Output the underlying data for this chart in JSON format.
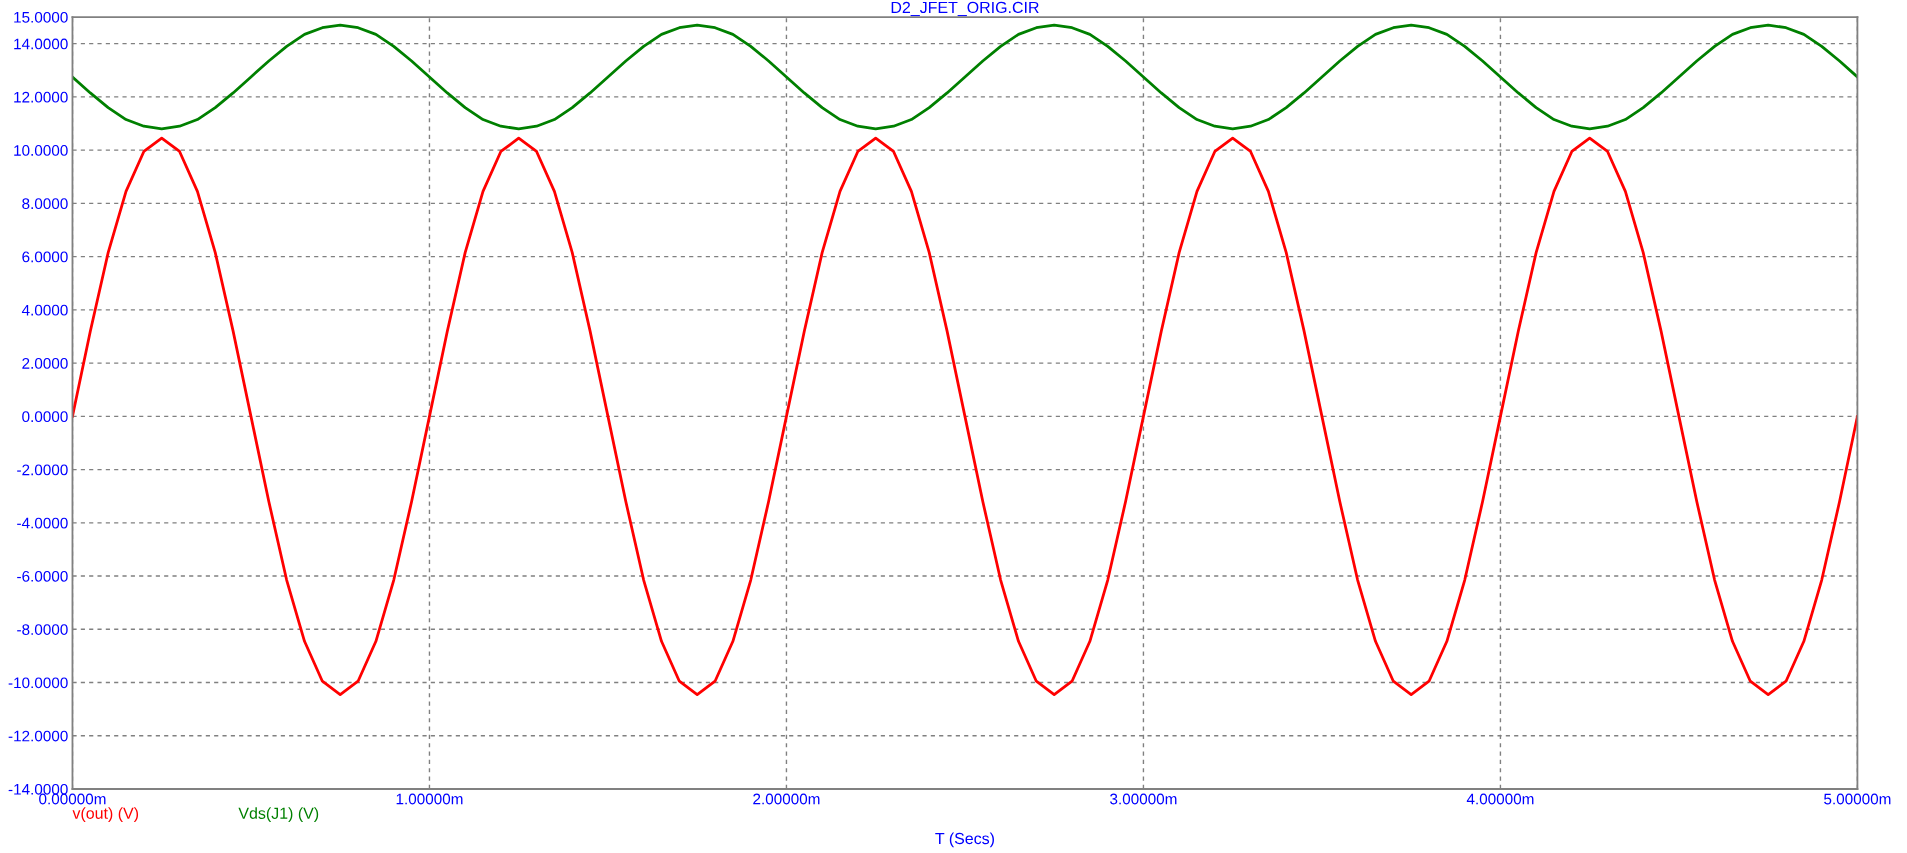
{
  "chart_data": {
    "type": "line",
    "title": "D2_JFET_ORIG.CIR",
    "xlabel": "T (Secs)",
    "x": [
      0,
      0.05,
      0.1,
      0.15,
      0.2,
      0.25,
      0.3,
      0.35,
      0.4,
      0.45,
      0.5,
      0.55,
      0.6,
      0.65,
      0.7,
      0.75,
      0.8,
      0.85,
      0.9,
      0.95,
      1,
      1.05,
      1.1,
      1.15,
      1.2,
      1.25,
      1.3,
      1.35,
      1.4,
      1.45,
      1.5,
      1.55,
      1.6,
      1.65,
      1.7,
      1.75,
      1.8,
      1.85,
      1.9,
      1.95,
      2,
      2.05,
      2.1,
      2.15,
      2.2,
      2.25,
      2.3,
      2.35,
      2.4,
      2.45,
      2.5,
      2.55,
      2.6,
      2.65,
      2.7,
      2.75,
      2.8,
      2.85,
      2.9,
      2.95,
      3,
      3.05,
      3.1,
      3.15,
      3.2,
      3.25,
      3.3,
      3.35,
      3.4,
      3.45,
      3.5,
      3.55,
      3.6,
      3.65,
      3.7,
      3.75,
      3.8,
      3.85,
      3.9,
      3.95,
      4,
      4.05,
      4.1,
      4.15,
      4.2,
      4.25,
      4.3,
      4.35,
      4.4,
      4.45,
      4.5,
      4.55,
      4.6,
      4.65,
      4.7,
      4.75,
      4.8,
      4.85,
      4.9,
      4.95,
      5
    ],
    "series": [
      {
        "name": "v(out) (V)",
        "color": "#ff0000",
        "values": [
          0,
          3.2,
          6.15,
          8.45,
          9.95,
          10.45,
          9.95,
          8.45,
          6.15,
          3.2,
          0,
          -3.2,
          -6.15,
          -8.45,
          -9.95,
          -10.45,
          -9.95,
          -8.45,
          -6.15,
          -3.2,
          0,
          3.2,
          6.15,
          8.45,
          9.95,
          10.45,
          9.95,
          8.45,
          6.15,
          3.2,
          0,
          -3.2,
          -6.15,
          -8.45,
          -9.95,
          -10.45,
          -9.95,
          -8.45,
          -6.15,
          -3.2,
          0,
          3.2,
          6.15,
          8.45,
          9.95,
          10.45,
          9.95,
          8.45,
          6.15,
          3.2,
          0,
          -3.2,
          -6.15,
          -8.45,
          -9.95,
          -10.45,
          -9.95,
          -8.45,
          -6.15,
          -3.2,
          0,
          3.2,
          6.15,
          8.45,
          9.95,
          10.45,
          9.95,
          8.45,
          6.15,
          3.2,
          0,
          -3.2,
          -6.15,
          -8.45,
          -9.95,
          -10.45,
          -9.95,
          -8.45,
          -6.15,
          -3.2,
          0,
          3.2,
          6.15,
          8.45,
          9.95,
          10.45,
          9.95,
          8.45,
          6.15,
          3.2,
          0,
          -3.2,
          -6.15,
          -8.45,
          -9.95,
          -10.45,
          -9.95,
          -8.45,
          -6.15,
          -3.2,
          0
        ]
      },
      {
        "name": "Vds(J1) (V)",
        "color": "#008000",
        "values": [
          12.75,
          12.15,
          11.6,
          11.15,
          10.9,
          10.8,
          10.9,
          11.15,
          11.6,
          12.15,
          12.75,
          13.35,
          13.9,
          14.35,
          14.6,
          14.7,
          14.6,
          14.35,
          13.9,
          13.35,
          12.75,
          12.15,
          11.6,
          11.15,
          10.9,
          10.8,
          10.9,
          11.15,
          11.6,
          12.15,
          12.75,
          13.35,
          13.9,
          14.35,
          14.6,
          14.7,
          14.6,
          14.35,
          13.9,
          13.35,
          12.75,
          12.15,
          11.6,
          11.15,
          10.9,
          10.8,
          10.9,
          11.15,
          11.6,
          12.15,
          12.75,
          13.35,
          13.9,
          14.35,
          14.6,
          14.7,
          14.6,
          14.35,
          13.9,
          13.35,
          12.75,
          12.15,
          11.6,
          11.15,
          10.9,
          10.8,
          10.9,
          11.15,
          11.6,
          12.15,
          12.75,
          13.35,
          13.9,
          14.35,
          14.6,
          14.7,
          14.6,
          14.35,
          13.9,
          13.35,
          12.75,
          12.15,
          11.6,
          11.15,
          10.9,
          10.8,
          10.9,
          11.15,
          11.6,
          12.15,
          12.75,
          13.35,
          13.9,
          14.35,
          14.6,
          14.7,
          14.6,
          14.35,
          13.9,
          13.35,
          12.75
        ]
      }
    ],
    "xlim": [
      0,
      5
    ],
    "xticks": [
      {
        "value": 0,
        "label": "0.00000m"
      },
      {
        "value": 1,
        "label": "1.00000m"
      },
      {
        "value": 2,
        "label": "2.00000m"
      },
      {
        "value": 3,
        "label": "3.00000m"
      },
      {
        "value": 4,
        "label": "4.00000m"
      },
      {
        "value": 5,
        "label": "5.00000m"
      }
    ],
    "ylim": [
      -14,
      15
    ],
    "yticks": [
      {
        "value": -14,
        "label": "-14.0000"
      },
      {
        "value": -12,
        "label": "-12.0000"
      },
      {
        "value": -10,
        "label": "-10.0000"
      },
      {
        "value": -8,
        "label": "-8.0000"
      },
      {
        "value": -6,
        "label": "-6.0000"
      },
      {
        "value": -4,
        "label": "-4.0000"
      },
      {
        "value": -2,
        "label": "-2.0000"
      },
      {
        "value": 0,
        "label": "0.0000"
      },
      {
        "value": 2,
        "label": "2.0000"
      },
      {
        "value": 4,
        "label": "4.0000"
      },
      {
        "value": 6,
        "label": "6.0000"
      },
      {
        "value": 8,
        "label": "8.0000"
      },
      {
        "value": 10,
        "label": "10.0000"
      },
      {
        "value": 12,
        "label": "12.0000"
      },
      {
        "value": 14,
        "label": "14.0000"
      },
      {
        "value": 15,
        "label": "15.0000"
      }
    ],
    "grid": true,
    "legend": "bottom",
    "marker": "none",
    "line_style": "solid"
  }
}
